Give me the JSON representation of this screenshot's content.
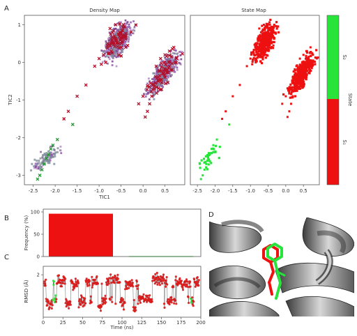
{
  "panels": {
    "A": "A",
    "B": "B",
    "C": "C",
    "D": "D"
  },
  "density_map": {
    "title": "Density Map",
    "xlabel": "TIC1",
    "ylabel": "TIC2",
    "xticks": [
      "-2.5",
      "-2.0",
      "-1.5",
      "-1.0",
      "-0.5",
      "0.0",
      "0.5"
    ],
    "yticks": [
      "1",
      "0",
      "-1",
      "-2",
      "-3"
    ]
  },
  "state_map": {
    "title": "State Map",
    "xticks": [
      "-2.5",
      "-2.0",
      "-1.5",
      "-1.0",
      "-0.5",
      "0.0",
      "0.5"
    ]
  },
  "colorbar": {
    "label": "State",
    "states": [
      "S₂",
      "S₁"
    ],
    "colors": {
      "s2": "#27e33a",
      "s1": "#ee1111"
    }
  },
  "chart_data": [
    {
      "type": "scatter",
      "name": "density",
      "title": "Density Map",
      "xlabel": "TIC1",
      "ylabel": "TIC2",
      "xlim": [
        -2.7,
        0.95
      ],
      "ylim": [
        -3.25,
        1.25
      ],
      "clusters": [
        {
          "state": "S1",
          "center": [
            -0.58,
            0.55
          ],
          "spread": [
            0.17,
            0.42
          ],
          "angle": 65
        },
        {
          "state": "S1",
          "center": [
            0.45,
            -0.3
          ],
          "spread": [
            0.16,
            0.5
          ],
          "angle": 60
        },
        {
          "state": "S2",
          "center": [
            -2.2,
            -2.55
          ],
          "spread": [
            0.15,
            0.35
          ],
          "angle": 50
        }
      ],
      "points_s1": [
        [
          -0.75,
          0.9
        ],
        [
          -0.7,
          0.8
        ],
        [
          -0.65,
          0.7
        ],
        [
          -0.6,
          0.6
        ],
        [
          -0.55,
          0.5
        ],
        [
          -0.5,
          0.4
        ],
        [
          -0.62,
          1.0
        ],
        [
          -0.48,
          0.85
        ],
        [
          -0.8,
          0.5
        ],
        [
          -0.72,
          0.3
        ],
        [
          -0.9,
          0.2
        ],
        [
          -0.85,
          0.0
        ],
        [
          -0.95,
          -0.05
        ],
        [
          -0.55,
          0.2
        ],
        [
          -0.4,
          0.7
        ],
        [
          -0.45,
          1.0
        ],
        [
          -0.35,
          0.45
        ],
        [
          -0.7,
          0.6
        ],
        [
          -1.0,
          0.1
        ],
        [
          -0.5,
          0.65
        ],
        [
          -1.1,
          -0.1
        ],
        [
          -1.3,
          -0.6
        ],
        [
          -1.5,
          -0.9
        ],
        [
          -1.8,
          -1.5
        ],
        [
          -1.7,
          -1.3
        ],
        [
          0.3,
          -0.1
        ],
        [
          0.4,
          0.1
        ],
        [
          0.5,
          0.2
        ],
        [
          0.6,
          0.3
        ],
        [
          0.45,
          -0.3
        ],
        [
          0.35,
          -0.5
        ],
        [
          0.25,
          -0.7
        ],
        [
          0.2,
          -0.9
        ],
        [
          0.55,
          -0.2
        ],
        [
          0.7,
          0.4
        ],
        [
          0.65,
          0.15
        ],
        [
          0.15,
          -1.1
        ],
        [
          0.1,
          -1.3
        ],
        [
          0.05,
          -1.45
        ],
        [
          -0.1,
          -1.1
        ],
        [
          0.0,
          -0.9
        ],
        [
          0.38,
          -0.35
        ],
        [
          0.48,
          0.0
        ],
        [
          0.28,
          -0.55
        ],
        [
          0.6,
          -0.1
        ]
      ],
      "points_s2": [
        [
          -2.35,
          -3.0
        ],
        [
          -2.3,
          -2.85
        ],
        [
          -2.25,
          -2.7
        ],
        [
          -2.2,
          -2.55
        ],
        [
          -2.15,
          -2.45
        ],
        [
          -2.1,
          -2.3
        ],
        [
          -2.05,
          -2.2
        ],
        [
          -1.95,
          -2.05
        ],
        [
          -2.4,
          -3.1
        ],
        [
          -1.6,
          -1.65
        ]
      ]
    },
    {
      "type": "bar",
      "name": "frequency",
      "ylabel": "Frequency (%)",
      "categories": [
        "S1",
        "S2"
      ],
      "values": [
        96,
        1
      ],
      "ylim": [
        0,
        100
      ],
      "yticks": [
        "0",
        "50",
        "100"
      ]
    },
    {
      "type": "line",
      "name": "rmsd",
      "xlabel": "Time (ns)",
      "ylabel": "RMSD (Å)",
      "xlim": [
        0,
        200
      ],
      "ylim": [
        0.0,
        2.4
      ],
      "xticks": [
        "0",
        "25",
        "50",
        "75",
        "100",
        "125",
        "150",
        "175",
        "200"
      ],
      "yticks": [
        "2"
      ],
      "s2_time_ranges": [
        [
          12,
          16
        ],
        [
          187,
          189
        ]
      ]
    }
  ]
}
